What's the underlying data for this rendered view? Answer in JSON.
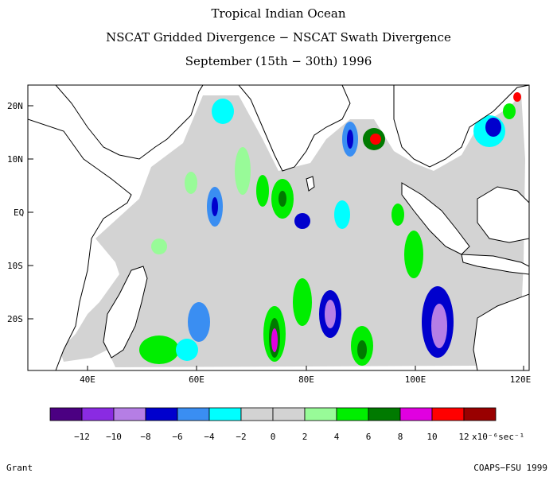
{
  "title": {
    "line1": "Tropical Indian Ocean",
    "line2": "NSCAT Gridded Divergence − NSCAT Swath Divergence",
    "line3": "September (15th − 30th) 1996"
  },
  "map": {
    "lat_labels": [
      "20N",
      "10N",
      "EQ",
      "10S",
      "20S"
    ],
    "lon_labels": [
      "40E",
      "60E",
      "80E",
      "100E",
      "120E"
    ],
    "land_color": "#ffffff",
    "ocean_mask_color": "#d3d3d3",
    "coastline_color": "#000000"
  },
  "colorbar": {
    "colors": [
      "#4b0082",
      "#8a2be2",
      "#b57ee5",
      "#0000cd",
      "#3a8ef2",
      "#00ffff",
      "#d3d3d3",
      "#d3d3d3",
      "#98fb98",
      "#00ee00",
      "#007a00",
      "#e000e0",
      "#ff0000",
      "#990000"
    ],
    "ticks": [
      "−12",
      "−10",
      "−8",
      "−6",
      "−4",
      "−2",
      "0",
      "2",
      "4",
      "6",
      "8",
      "10",
      "12"
    ],
    "units": "x10⁻⁶sec⁻¹"
  },
  "footer": {
    "left": "Grant",
    "right": "COAPS−FSU 1999"
  }
}
